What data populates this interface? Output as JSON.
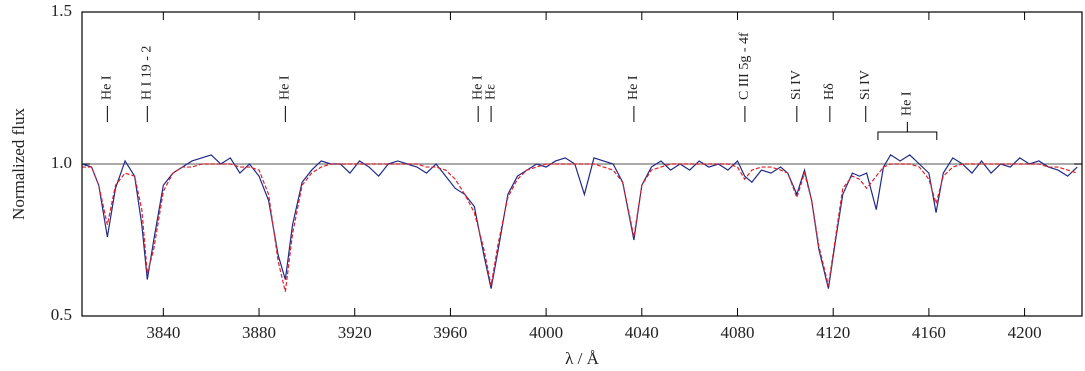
{
  "chart_data": {
    "type": "line",
    "xlabel": "λ / Å",
    "ylabel": "Normalized flux",
    "xlim": [
      3806,
      4224
    ],
    "ylim": [
      0.5,
      1.5
    ],
    "xticks": [
      3840,
      3880,
      3920,
      3960,
      4000,
      4040,
      4080,
      4120,
      4160,
      4200
    ],
    "yticks": [
      0.5,
      {
        "value": 1,
        "label": "1.0"
      },
      1.5
    ],
    "reference_line": 1,
    "reference_color": "#777777",
    "x": [
      3806,
      3810,
      3813,
      3816.6,
      3820,
      3824,
      3828,
      3831,
      3833.3,
      3836,
      3840,
      3844,
      3848,
      3852,
      3856,
      3860,
      3864,
      3868,
      3872,
      3876,
      3880,
      3884,
      3888,
      3891,
      3894,
      3898,
      3902,
      3906,
      3910,
      3914,
      3918,
      3922,
      3926,
      3930,
      3934,
      3938,
      3942,
      3946,
      3950,
      3954,
      3958,
      3962,
      3966,
      3970,
      3974,
      3977,
      3980,
      3984,
      3988,
      3992,
      3996,
      4000,
      4004,
      4008,
      4012,
      4016,
      4020,
      4024,
      4028,
      4032,
      4036.7,
      4040,
      4044,
      4048,
      4052,
      4056,
      4060,
      4064,
      4068,
      4072,
      4076,
      4080,
      4083,
      4086,
      4090,
      4094,
      4098,
      4101,
      4104.8,
      4108,
      4111,
      4114,
      4118,
      4121,
      4124,
      4128,
      4131,
      4134,
      4138,
      4141,
      4144,
      4148,
      4152,
      4156,
      4160,
      4163,
      4166,
      4170,
      4174,
      4178,
      4182,
      4186,
      4190,
      4194,
      4198,
      4202,
      4206,
      4210,
      4214,
      4218,
      4222
    ],
    "series": [
      {
        "name": "observed",
        "color": "#1f2a8a",
        "line_style": "solid",
        "values": [
          1.0,
          0.99,
          0.93,
          0.76,
          0.92,
          1.01,
          0.96,
          0.8,
          0.62,
          0.75,
          0.93,
          0.97,
          0.99,
          1.01,
          1.02,
          1.03,
          1.0,
          1.02,
          0.97,
          1.0,
          0.96,
          0.88,
          0.7,
          0.62,
          0.8,
          0.94,
          0.98,
          1.01,
          1.0,
          1.0,
          0.97,
          1.01,
          0.99,
          0.96,
          1.0,
          1.01,
          1.0,
          0.99,
          0.97,
          1.0,
          0.96,
          0.92,
          0.9,
          0.86,
          0.7,
          0.59,
          0.72,
          0.9,
          0.96,
          0.98,
          1.0,
          0.99,
          1.01,
          1.02,
          1.0,
          0.9,
          1.02,
          1.01,
          1.0,
          0.94,
          0.75,
          0.93,
          0.99,
          1.01,
          0.98,
          1.0,
          0.98,
          1.01,
          0.99,
          1.0,
          0.98,
          1.01,
          0.96,
          0.94,
          0.98,
          0.97,
          0.99,
          0.97,
          0.9,
          0.98,
          0.88,
          0.72,
          0.59,
          0.75,
          0.9,
          0.97,
          0.96,
          0.97,
          0.85,
          0.99,
          1.03,
          1.01,
          1.03,
          1.0,
          0.97,
          0.84,
          0.97,
          1.02,
          1.0,
          0.97,
          1.01,
          0.97,
          1.0,
          0.99,
          1.02,
          1.0,
          1.01,
          0.99,
          0.98,
          0.96,
          0.99
        ]
      },
      {
        "name": "model",
        "color": "#e0202a",
        "line_style": "dashed",
        "values": [
          0.99,
          0.99,
          0.93,
          0.8,
          0.93,
          0.97,
          0.96,
          0.85,
          0.64,
          0.72,
          0.91,
          0.97,
          0.99,
          0.99,
          1.0,
          1.0,
          1.0,
          1.0,
          0.99,
          0.99,
          0.98,
          0.9,
          0.68,
          0.58,
          0.77,
          0.93,
          0.97,
          0.99,
          1.0,
          1.0,
          1.0,
          1.0,
          1.0,
          1.0,
          1.0,
          1.0,
          1.0,
          1.0,
          0.99,
          0.99,
          0.98,
          0.95,
          0.9,
          0.84,
          0.72,
          0.6,
          0.74,
          0.89,
          0.95,
          0.98,
          0.99,
          1.0,
          1.0,
          1.0,
          1.0,
          1.0,
          1.0,
          0.99,
          0.98,
          0.94,
          0.76,
          0.93,
          0.98,
          0.99,
          1.0,
          1.0,
          1.0,
          1.0,
          1.0,
          1.0,
          1.0,
          0.99,
          0.95,
          0.98,
          0.99,
          0.99,
          0.98,
          0.97,
          0.89,
          0.97,
          0.88,
          0.73,
          0.6,
          0.76,
          0.92,
          0.96,
          0.95,
          0.92,
          0.96,
          0.99,
          1.0,
          1.0,
          1.0,
          0.99,
          0.95,
          0.87,
          0.96,
          0.99,
          1.0,
          1.0,
          1.0,
          1.0,
          1.0,
          1.0,
          1.0,
          1.0,
          1.0,
          0.99,
          0.99,
          0.98,
          0.97
        ]
      }
    ],
    "annotations": [
      {
        "text": "He I",
        "x": 3816.6
      },
      {
        "text": "H I 19 - 2",
        "x": 3833.3
      },
      {
        "text": "He I",
        "x": 3891.0
      },
      {
        "text": "He I",
        "x": 3971.6
      },
      {
        "text": "Hε",
        "x": 3977.0
      },
      {
        "text": "He I",
        "x": 4036.7
      },
      {
        "text": "C III 5g - 4f",
        "x": 4083.1
      },
      {
        "text": "Si IV",
        "x": 4104.8
      },
      {
        "text": "Hδ",
        "x": 4118.6
      },
      {
        "text": "Si IV",
        "x": 4133.6
      },
      {
        "text": "He I",
        "x": [
          4138.7,
          4163.3
        ]
      }
    ]
  }
}
